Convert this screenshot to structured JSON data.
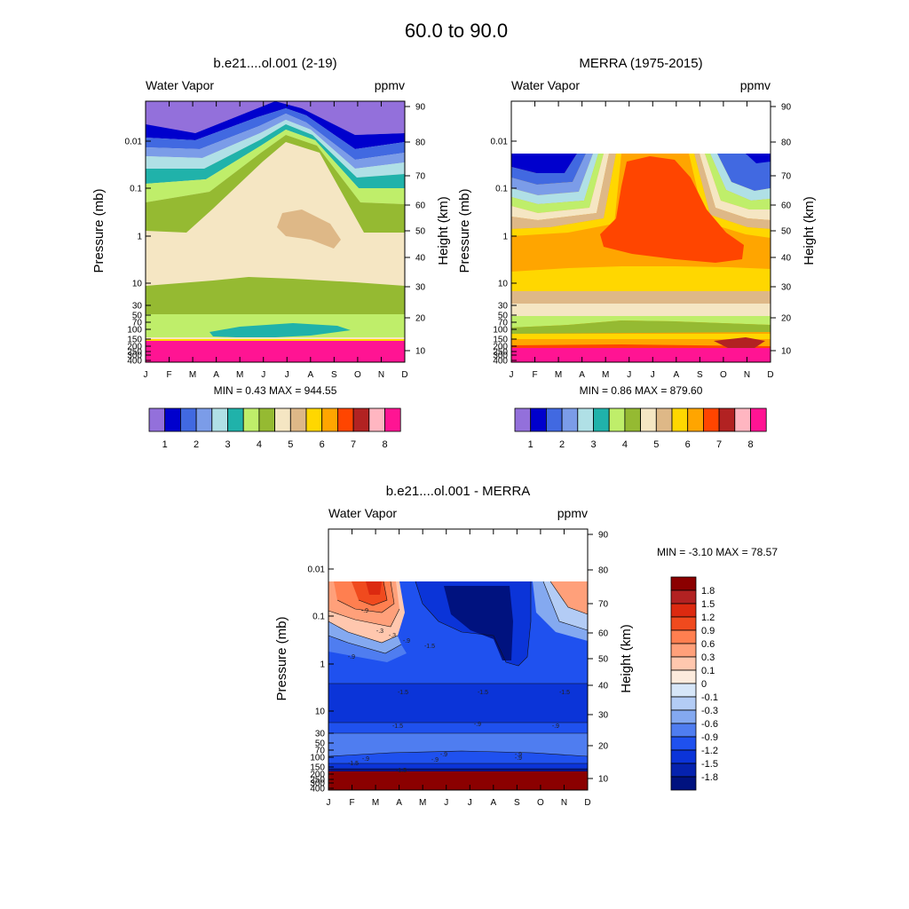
{
  "title": "60.0 to  90.0",
  "chart_data": [
    {
      "type": "heatmap",
      "title": "b.e21....ol.001 (2-19)",
      "left_label": "Water Vapor",
      "right_label": "ppmv",
      "ylabel": "Pressure (mb)",
      "ylabel_right": "Height (km)",
      "x_ticks": [
        "J",
        "F",
        "M",
        "A",
        "M",
        "J",
        "J",
        "A",
        "S",
        "O",
        "N",
        "D"
      ],
      "pressure_ticks": [
        "0.01",
        "0.1",
        "1",
        "10",
        "30",
        "50",
        "70",
        "100",
        "150",
        "200",
        "250",
        "300",
        "400"
      ],
      "height_ticks": [
        "90",
        "80",
        "70",
        "60",
        "50",
        "40",
        "30",
        "20",
        "10"
      ],
      "minmax": "MIN =   0.43  MAX = 944.55",
      "colorbar_labels": [
        "1",
        "2",
        "3",
        "4",
        "5",
        "6",
        "7",
        "8"
      ],
      "colors": [
        "#9370DB",
        "#0000CD",
        "#4169E1",
        "#7B9CE8",
        "#B0E0E6",
        "#20B2AA",
        "#BFEE6A",
        "#95BA32",
        "#F5E6C3",
        "#DEB887",
        "#FFD700",
        "#FFA500",
        "#FF4500",
        "#B22222",
        "#FFB6C1",
        "#FF1493"
      ],
      "range": [
        0.43,
        944.55
      ]
    },
    {
      "type": "heatmap",
      "title": "MERRA (1975-2015)",
      "left_label": "Water Vapor",
      "right_label": "ppmv",
      "ylabel": "Pressure (mb)",
      "ylabel_right": "Height (km)",
      "x_ticks": [
        "J",
        "F",
        "M",
        "A",
        "M",
        "J",
        "J",
        "A",
        "S",
        "O",
        "N",
        "D"
      ],
      "pressure_ticks": [
        "0.01",
        "0.1",
        "1",
        "10",
        "30",
        "50",
        "70",
        "100",
        "150",
        "200",
        "250",
        "300",
        "400"
      ],
      "height_ticks": [
        "90",
        "80",
        "70",
        "60",
        "50",
        "40",
        "30",
        "20",
        "10"
      ],
      "minmax": "MIN =   0.86  MAX = 879.60",
      "colorbar_labels": [
        "1",
        "2",
        "3",
        "4",
        "5",
        "6",
        "7",
        "8"
      ],
      "colors": [
        "#9370DB",
        "#0000CD",
        "#4169E1",
        "#7B9CE8",
        "#B0E0E6",
        "#20B2AA",
        "#BFEE6A",
        "#95BA32",
        "#F5E6C3",
        "#DEB887",
        "#FFD700",
        "#FFA500",
        "#FF4500",
        "#B22222",
        "#FFB6C1",
        "#FF1493"
      ],
      "range": [
        0.86,
        879.6
      ]
    },
    {
      "type": "heatmap",
      "title": "b.e21....ol.001 - MERRA",
      "left_label": "Water Vapor",
      "right_label": "ppmv",
      "ylabel": "Pressure (mb)",
      "ylabel_right": "Height (km)",
      "x_ticks": [
        "J",
        "F",
        "M",
        "A",
        "M",
        "J",
        "J",
        "A",
        "S",
        "O",
        "N",
        "D"
      ],
      "pressure_ticks": [
        "0.01",
        "0.1",
        "1",
        "10",
        "30",
        "50",
        "70",
        "100",
        "150",
        "200",
        "250",
        "300",
        "400"
      ],
      "height_ticks": [
        "90",
        "80",
        "70",
        "60",
        "50",
        "40",
        "30",
        "20",
        "10"
      ],
      "minmax": "MIN =  -3.10  MAX =  78.57",
      "colorbar_labels": [
        "1.8",
        "1.5",
        "1.2",
        "0.9",
        "0.6",
        "0.3",
        "0.1",
        "0",
        "-0.1",
        "-0.3",
        "-0.6",
        "-0.9",
        "-1.2",
        "-1.5",
        "-1.8"
      ],
      "colors": [
        "#8B0000",
        "#B22222",
        "#DC2A10",
        "#F04A1E",
        "#FF7F50",
        "#FFA07A",
        "#FFC7AE",
        "#FCEBDD",
        "#D6E6F8",
        "#B3CCF5",
        "#84A9F0",
        "#4F7DF0",
        "#1F51EF",
        "#0B34D8",
        "#0522AE",
        "#00127F"
      ],
      "contour_labels": [
        "-.9",
        "-.3",
        "-.3",
        "-.9",
        "-1.5",
        "-.9",
        "-1.5",
        "-1.5",
        "-1.5",
        "-1.5",
        "-.9",
        "-.9",
        "-.9",
        "-.9",
        "-.9",
        "-.9",
        "-1.5",
        "-.9",
        "-1.5"
      ],
      "range": [
        -3.1,
        78.57
      ]
    }
  ]
}
